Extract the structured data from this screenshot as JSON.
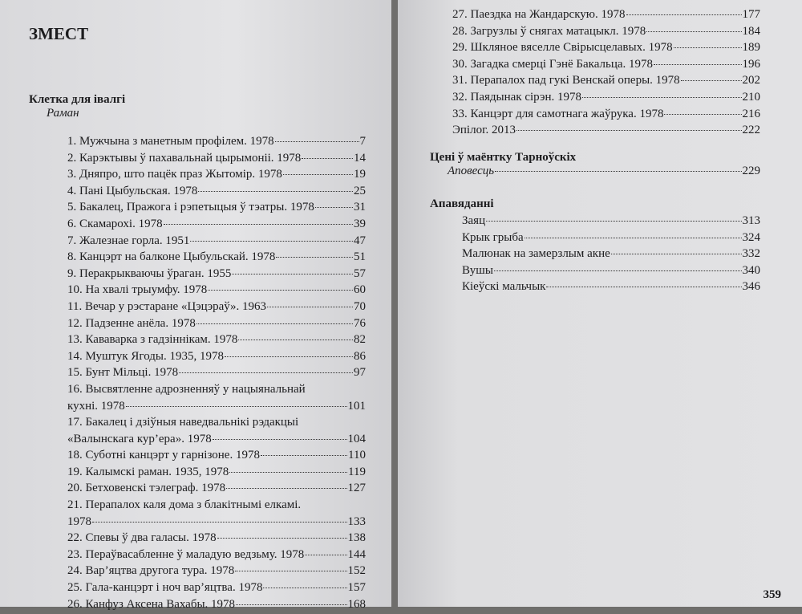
{
  "left_page": {
    "heading": "ЗМЕСТ",
    "section": {
      "title": "Клетка для івалгі",
      "subtitle": "Раман",
      "entries": [
        {
          "lines": [
            "1. Мужчына з манетным профілем. 1978"
          ],
          "page": "7"
        },
        {
          "lines": [
            "2. Карэктывы ў пахавальнай цырымоніі. 1978"
          ],
          "page": "14"
        },
        {
          "lines": [
            "3. Дняпро, што пацёк праз Жытомір. 1978"
          ],
          "page": "19"
        },
        {
          "lines": [
            "4. Пані Цыбульская. 1978"
          ],
          "page": "25"
        },
        {
          "lines": [
            "5. Бакалец, Пражога і рэпетыцыя ў тэатры. 1978"
          ],
          "page": "31"
        },
        {
          "lines": [
            "6. Скамарохі. 1978"
          ],
          "page": "39"
        },
        {
          "lines": [
            "7. Жалезнае горла. 1951"
          ],
          "page": "47"
        },
        {
          "lines": [
            "8. Канцэрт на балконе Цыбульскай. 1978"
          ],
          "page": "51"
        },
        {
          "lines": [
            "9. Перакрыкваючы ўраган. 1955"
          ],
          "page": "57"
        },
        {
          "lines": [
            "10. На хвалі трыумфу. 1978"
          ],
          "page": "60"
        },
        {
          "lines": [
            "11. Вечар у рэстаране «Цэцэраў». 1963"
          ],
          "page": "70"
        },
        {
          "lines": [
            "12. Падзенне анёла. 1978"
          ],
          "page": "76"
        },
        {
          "lines": [
            "13. Кававарка з гадзіннікам. 1978"
          ],
          "page": "82"
        },
        {
          "lines": [
            "14. Муштук Ягоды. 1935, 1978"
          ],
          "page": "86"
        },
        {
          "lines": [
            "15. Бунт Мільцi. 1978"
          ],
          "page": "97"
        },
        {
          "lines": [
            "16. Высвятленне адрозненняў у нацыянальнай",
            "кухні. 1978"
          ],
          "page": "101"
        },
        {
          "lines": [
            "17. Бакалец і дзіўныя наведвальнікі рэдакцыі",
            "«Валынскага кур’ера». 1978"
          ],
          "page": "104"
        },
        {
          "lines": [
            "18. Суботні канцэрт у гарнізоне. 1978"
          ],
          "page": "110"
        },
        {
          "lines": [
            "19. Калымскі раман. 1935, 1978"
          ],
          "page": "119"
        },
        {
          "lines": [
            "20. Бетховенскі тэлеграф. 1978"
          ],
          "page": "127"
        },
        {
          "lines": [
            "21. Перапалох каля дома з блакітнымі елкамі.",
            "1978"
          ],
          "page": "133"
        },
        {
          "lines": [
            "22. Спевы ў два галасы. 1978"
          ],
          "page": "138"
        },
        {
          "lines": [
            "23. Пераўвасабленне ў маладую ведзьму. 1978"
          ],
          "page": "144"
        },
        {
          "lines": [
            "24. Вар’яцтва другога тура. 1978"
          ],
          "page": "152"
        },
        {
          "lines": [
            "25. Гала-канцэрт і ноч вар’яцтва. 1978"
          ],
          "page": "157"
        },
        {
          "lines": [
            "26. Канфуз Аксена Вахабы. 1978"
          ],
          "page": "168"
        }
      ]
    }
  },
  "right_page": {
    "entries": [
      {
        "lines": [
          "27. Паездка на Жандарскую. 1978"
        ],
        "page": "177"
      },
      {
        "lines": [
          "28. Загрузлы ў снягах матацыкл. 1978"
        ],
        "page": "184"
      },
      {
        "lines": [
          "29. Шкляное вяселле Свірысцелавых. 1978"
        ],
        "page": "189"
      },
      {
        "lines": [
          "30. Загадка смерці Гэнё Бакальца. 1978"
        ],
        "page": "196"
      },
      {
        "lines": [
          "31. Перапалох пад гукі Венскай оперы. 1978"
        ],
        "page": "202"
      },
      {
        "lines": [
          "32. Паядынак сірэн. 1978"
        ],
        "page": "210"
      },
      {
        "lines": [
          "33. Канцэрт для самотнага жаўрука. 1978"
        ],
        "page": "216"
      },
      {
        "lines": [
          "Эпілог. 2013"
        ],
        "page": "222"
      }
    ],
    "novella": {
      "title": "Цені ў маёнтку Тарноўскіх",
      "subtitle": "Аповесць",
      "page": "229"
    },
    "stories": {
      "title": "Апавяданні",
      "entries": [
        {
          "lines": [
            "Заяц"
          ],
          "page": "313"
        },
        {
          "lines": [
            "Крык грыба"
          ],
          "page": "324"
        },
        {
          "lines": [
            "Малюнак на замерзлым акне"
          ],
          "page": "332"
        },
        {
          "lines": [
            "Вушы"
          ],
          "page": "340"
        },
        {
          "lines": [
            "Кіеўскі мальчык"
          ],
          "page": "346"
        }
      ]
    },
    "page_number": "359"
  }
}
